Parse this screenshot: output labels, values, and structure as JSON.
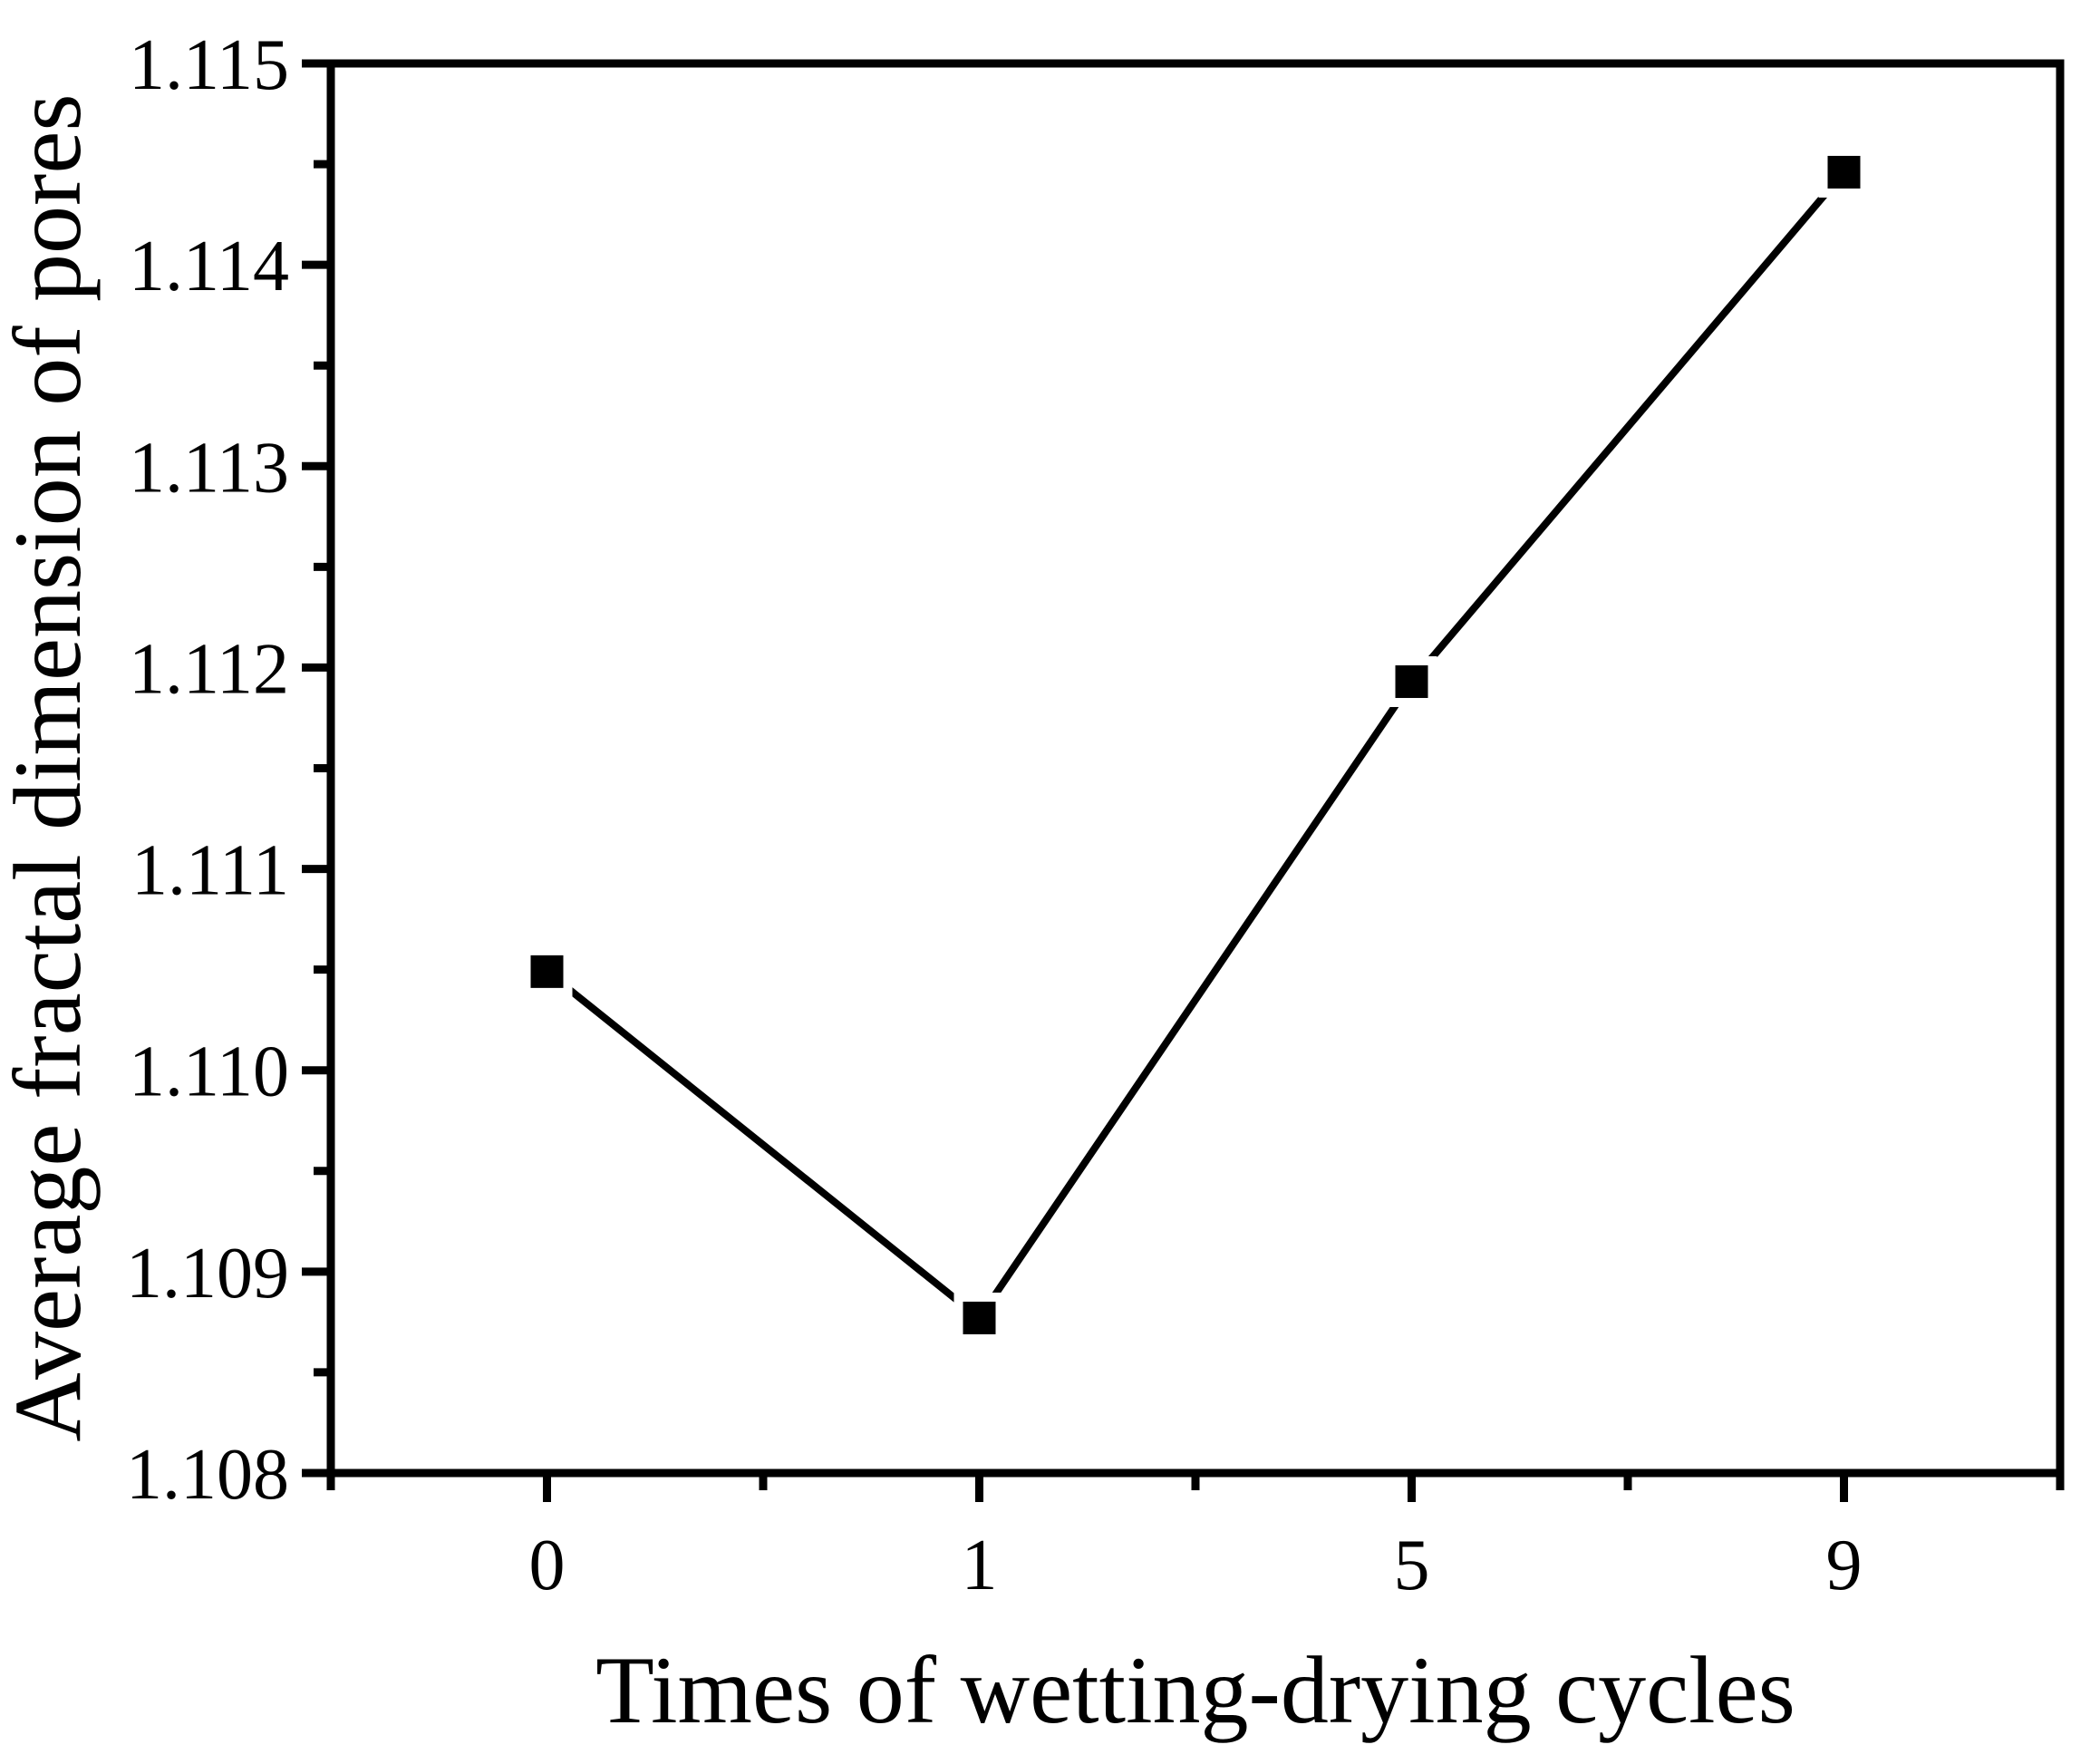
{
  "chart_data": {
    "type": "line",
    "categories": [
      "0",
      "1",
      "5",
      "9"
    ],
    "series": [
      {
        "name": "Average fractal dimension of pores",
        "values": [
          1.11049,
          1.10877,
          1.11193,
          1.11446
        ]
      }
    ],
    "title": "",
    "xlabel": "Times of wetting-drying cycles",
    "ylabel": "Average fractal dimension of pores",
    "ylim": [
      1.108,
      1.115
    ],
    "y_tick_step": 0.001,
    "y_tick_labels": [
      "1.108",
      "1.109",
      "1.110",
      "1.111",
      "1.112",
      "1.113",
      "1.114",
      "1.115"
    ],
    "x_tick_labels": [
      "0",
      "1",
      "5",
      "9"
    ],
    "minor_ticks": "one-between-majors",
    "grid": false,
    "legend_position": "none",
    "marker": "filled-square",
    "line_color": "#000000",
    "marker_color": "#000000",
    "axis_color": "#000000",
    "background_color": "#ffffff"
  }
}
